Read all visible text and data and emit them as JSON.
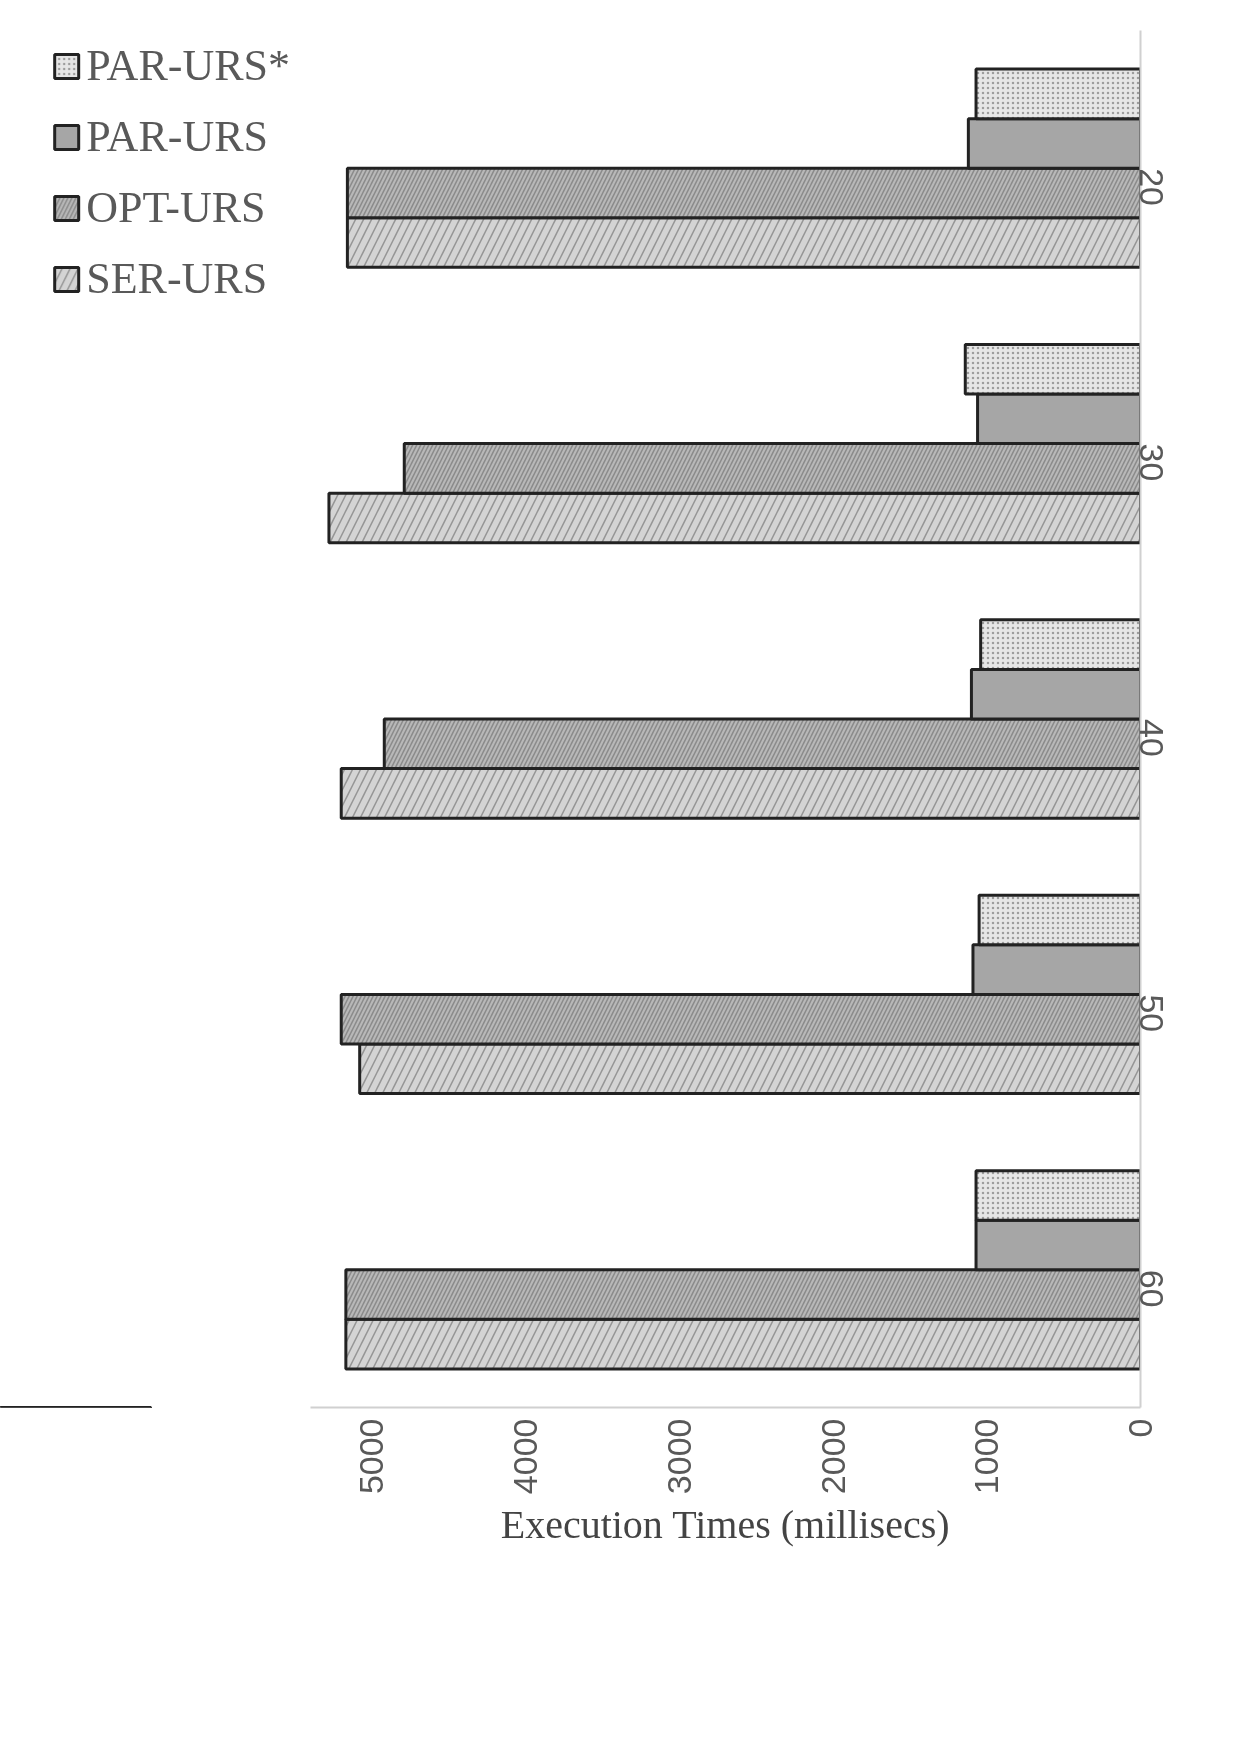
{
  "chart_data": {
    "type": "bar",
    "orientation": "horizontal",
    "xlabel": "Execution Times (millisecs)",
    "categories": [
      "20",
      "30",
      "40",
      "50",
      "60"
    ],
    "series": [
      {
        "name": "SER-URS",
        "color": "#d4d4d4",
        "values": [
          5160,
          5280,
          5200,
          5080,
          5170
        ]
      },
      {
        "name": "OPT-URS",
        "color": "#b8b8b8",
        "values": [
          5160,
          4790,
          4920,
          5200,
          5170
        ]
      },
      {
        "name": "PAR-URS",
        "color": "#a6a6a6",
        "values": [
          1120,
          1060,
          1100,
          1090,
          1070
        ]
      },
      {
        "name": "PAR-URS*",
        "color": "#e6e6e6",
        "values": [
          1070,
          1140,
          1040,
          1050,
          1070
        ]
      }
    ],
    "xlim": [
      5400,
      0
    ],
    "xticks": [
      0,
      1000,
      2000,
      3000,
      4000,
      5000
    ],
    "grid": false,
    "legend": "left"
  }
}
